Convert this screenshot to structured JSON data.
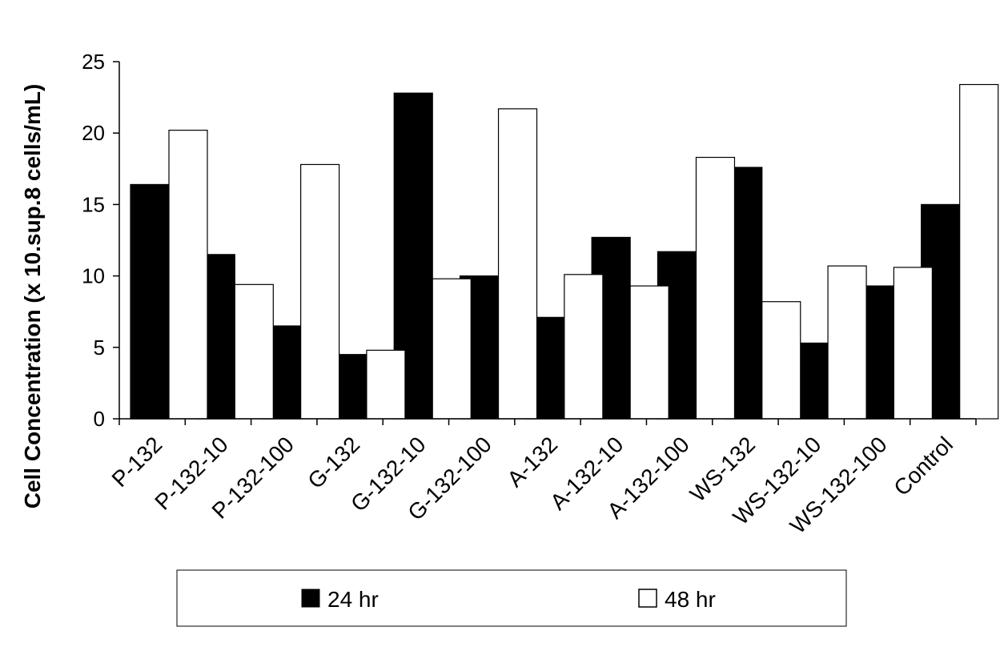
{
  "chart_data": {
    "type": "bar",
    "ylabel": "Cell Concentration (x 10.sup.8 cells/mL)",
    "xlabel": "",
    "ylim": [
      0,
      25
    ],
    "yticks": [
      "0",
      "5",
      "10",
      "15",
      "20",
      "25"
    ],
    "grid": false,
    "legend_position": "bottom",
    "categories": [
      "P-132",
      "P-132-10",
      "P-132-100",
      "G-132",
      "G-132-10",
      "G-132-100",
      "A-132",
      "A-132-10",
      "A-132-100",
      "WS-132",
      "WS-132-10",
      "WS-132-100",
      "Control"
    ],
    "series": [
      {
        "name": "24 hr",
        "color": "#000000",
        "values": [
          16.4,
          11.5,
          6.5,
          4.5,
          22.8,
          10.0,
          7.1,
          12.7,
          11.7,
          17.6,
          5.3,
          9.3,
          15.0
        ]
      },
      {
        "name": "48 hr",
        "color": "#ffffff",
        "values": [
          20.2,
          9.4,
          17.8,
          4.8,
          9.8,
          21.7,
          10.1,
          9.3,
          18.3,
          8.2,
          10.7,
          10.6,
          23.4
        ]
      }
    ]
  }
}
